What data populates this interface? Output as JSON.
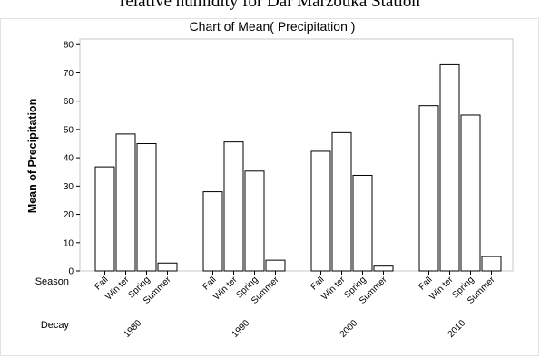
{
  "caption": "relative humidity for Dar Marzouka Station",
  "chart_data": {
    "type": "bar",
    "title": "Chart of Mean( Precipitation )",
    "ylabel": "Mean of Precipitation",
    "ylim": [
      0,
      82
    ],
    "yticks": [
      0,
      10,
      20,
      30,
      40,
      50,
      60,
      70,
      80
    ],
    "row_labels": {
      "inner": "Season",
      "outer": "Decay"
    },
    "categories": [
      "Fall",
      "Winter",
      "Spring",
      "Summer"
    ],
    "category_labels": [
      "Fall",
      "Win ter",
      "Spring",
      "Summer"
    ],
    "groups": [
      {
        "label": "1980",
        "values": [
          36.8,
          48.4,
          45.0,
          2.8
        ]
      },
      {
        "label": "1990",
        "values": [
          28.0,
          45.6,
          35.3,
          3.8
        ]
      },
      {
        "label": "2000",
        "values": [
          42.3,
          48.9,
          33.8,
          1.7
        ]
      },
      {
        "label": "2010",
        "values": [
          58.4,
          72.9,
          55.1,
          5.1
        ]
      }
    ],
    "grid": false,
    "legend": "none",
    "colors": {
      "bar_fill": "#ffffff",
      "bar_stroke": "#000000",
      "frame": "#c8c8c8"
    }
  }
}
